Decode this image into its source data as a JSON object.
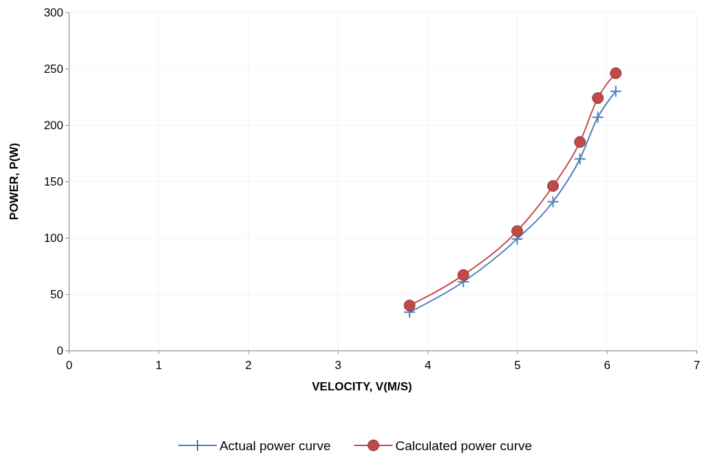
{
  "chart_data": {
    "type": "line",
    "xlabel": "VELOCITY, V(M/S)",
    "ylabel": "POWER, P(W)",
    "x": [
      3.8,
      4.4,
      5.0,
      5.4,
      5.7,
      5.9,
      6.1
    ],
    "series": [
      {
        "name": "Actual power curve",
        "color": "#4a7ebb",
        "marker": "cross",
        "values": [
          34,
          61,
          99,
          132,
          170,
          207,
          230
        ]
      },
      {
        "name": "Calculated power curve",
        "color": "#be4b48",
        "marker": "circle",
        "values": [
          40,
          67,
          106,
          146,
          185,
          224,
          246
        ]
      }
    ],
    "xlim": [
      0,
      7
    ],
    "xticks": [
      0,
      1,
      2,
      3,
      4,
      5,
      6,
      7
    ],
    "ylim": [
      0,
      300
    ],
    "yticks": [
      0,
      50,
      100,
      150,
      200,
      250,
      300
    ],
    "grid": true,
    "legend": "bottom",
    "line_style": "solid"
  }
}
